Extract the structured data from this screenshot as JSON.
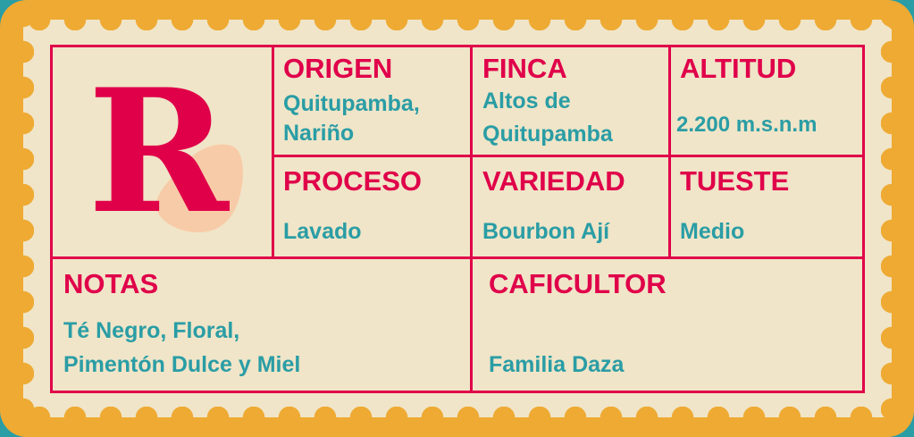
{
  "logo": {
    "letter": "R"
  },
  "colors": {
    "border": "#eeaa33",
    "paper": "#f0e5c8",
    "accent": "#e0004a",
    "text": "#2a9da5",
    "blob": "#f8cba8",
    "background": "#2a9da5"
  },
  "fields": {
    "origen": {
      "label": "ORIGEN",
      "value": [
        "Quitupamba,",
        "Nariño"
      ]
    },
    "finca": {
      "label": "FINCA",
      "value": [
        "Altos de",
        "Quitupamba"
      ]
    },
    "altitud": {
      "label": "ALTITUD",
      "value": [
        "2.200 m.s.n.m"
      ]
    },
    "proceso": {
      "label": "PROCESO",
      "value": [
        "Lavado"
      ]
    },
    "variedad": {
      "label": "VARIEDAD",
      "value": [
        "Bourbon Ají"
      ]
    },
    "tueste": {
      "label": "TUESTE",
      "value": [
        "Medio"
      ]
    },
    "notas": {
      "label": "NOTAS",
      "value": [
        "Té Negro, Floral,",
        "Pimentón Dulce y Miel"
      ]
    },
    "caficultor": {
      "label": "CAFICULTOR",
      "value": [
        "Familia Daza"
      ]
    }
  }
}
